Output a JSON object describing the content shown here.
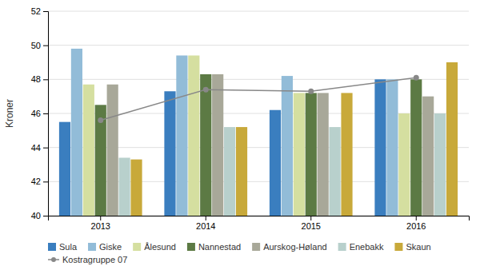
{
  "chart_data": {
    "type": "bar",
    "ylabel": "Kroner",
    "categories": [
      "2013",
      "2014",
      "2015",
      "2016"
    ],
    "series": [
      {
        "name": "Sula",
        "color": "#3a7ebf",
        "values": [
          45.5,
          47.3,
          46.2,
          48.0
        ]
      },
      {
        "name": "Giske",
        "color": "#92bcd8",
        "values": [
          49.8,
          49.4,
          48.2,
          48.0
        ]
      },
      {
        "name": "Ålesund",
        "color": "#d5dfa0",
        "values": [
          47.7,
          49.4,
          47.2,
          46.0
        ]
      },
      {
        "name": "Nannestad",
        "color": "#5c7a44",
        "values": [
          46.5,
          48.3,
          47.2,
          48.0
        ]
      },
      {
        "name": "Aurskog-Høland",
        "color": "#a8a899",
        "values": [
          47.7,
          48.3,
          47.2,
          47.0
        ]
      },
      {
        "name": "Enebakk",
        "color": "#b8d0cc",
        "values": [
          43.4,
          45.2,
          45.2,
          46.0
        ]
      },
      {
        "name": "Skaun",
        "color": "#c8a93a",
        "values": [
          43.3,
          45.2,
          47.2,
          49.0
        ]
      },
      {
        "name": "Kostragruppe 07",
        "color": "#888888",
        "type": "line",
        "marker": "circle",
        "values": [
          45.6,
          47.4,
          47.3,
          48.1
        ]
      }
    ],
    "ylim": [
      40,
      52
    ],
    "yticks": [
      40,
      42,
      44,
      46,
      48,
      50,
      52
    ],
    "grid": true,
    "legend": "bottom"
  }
}
